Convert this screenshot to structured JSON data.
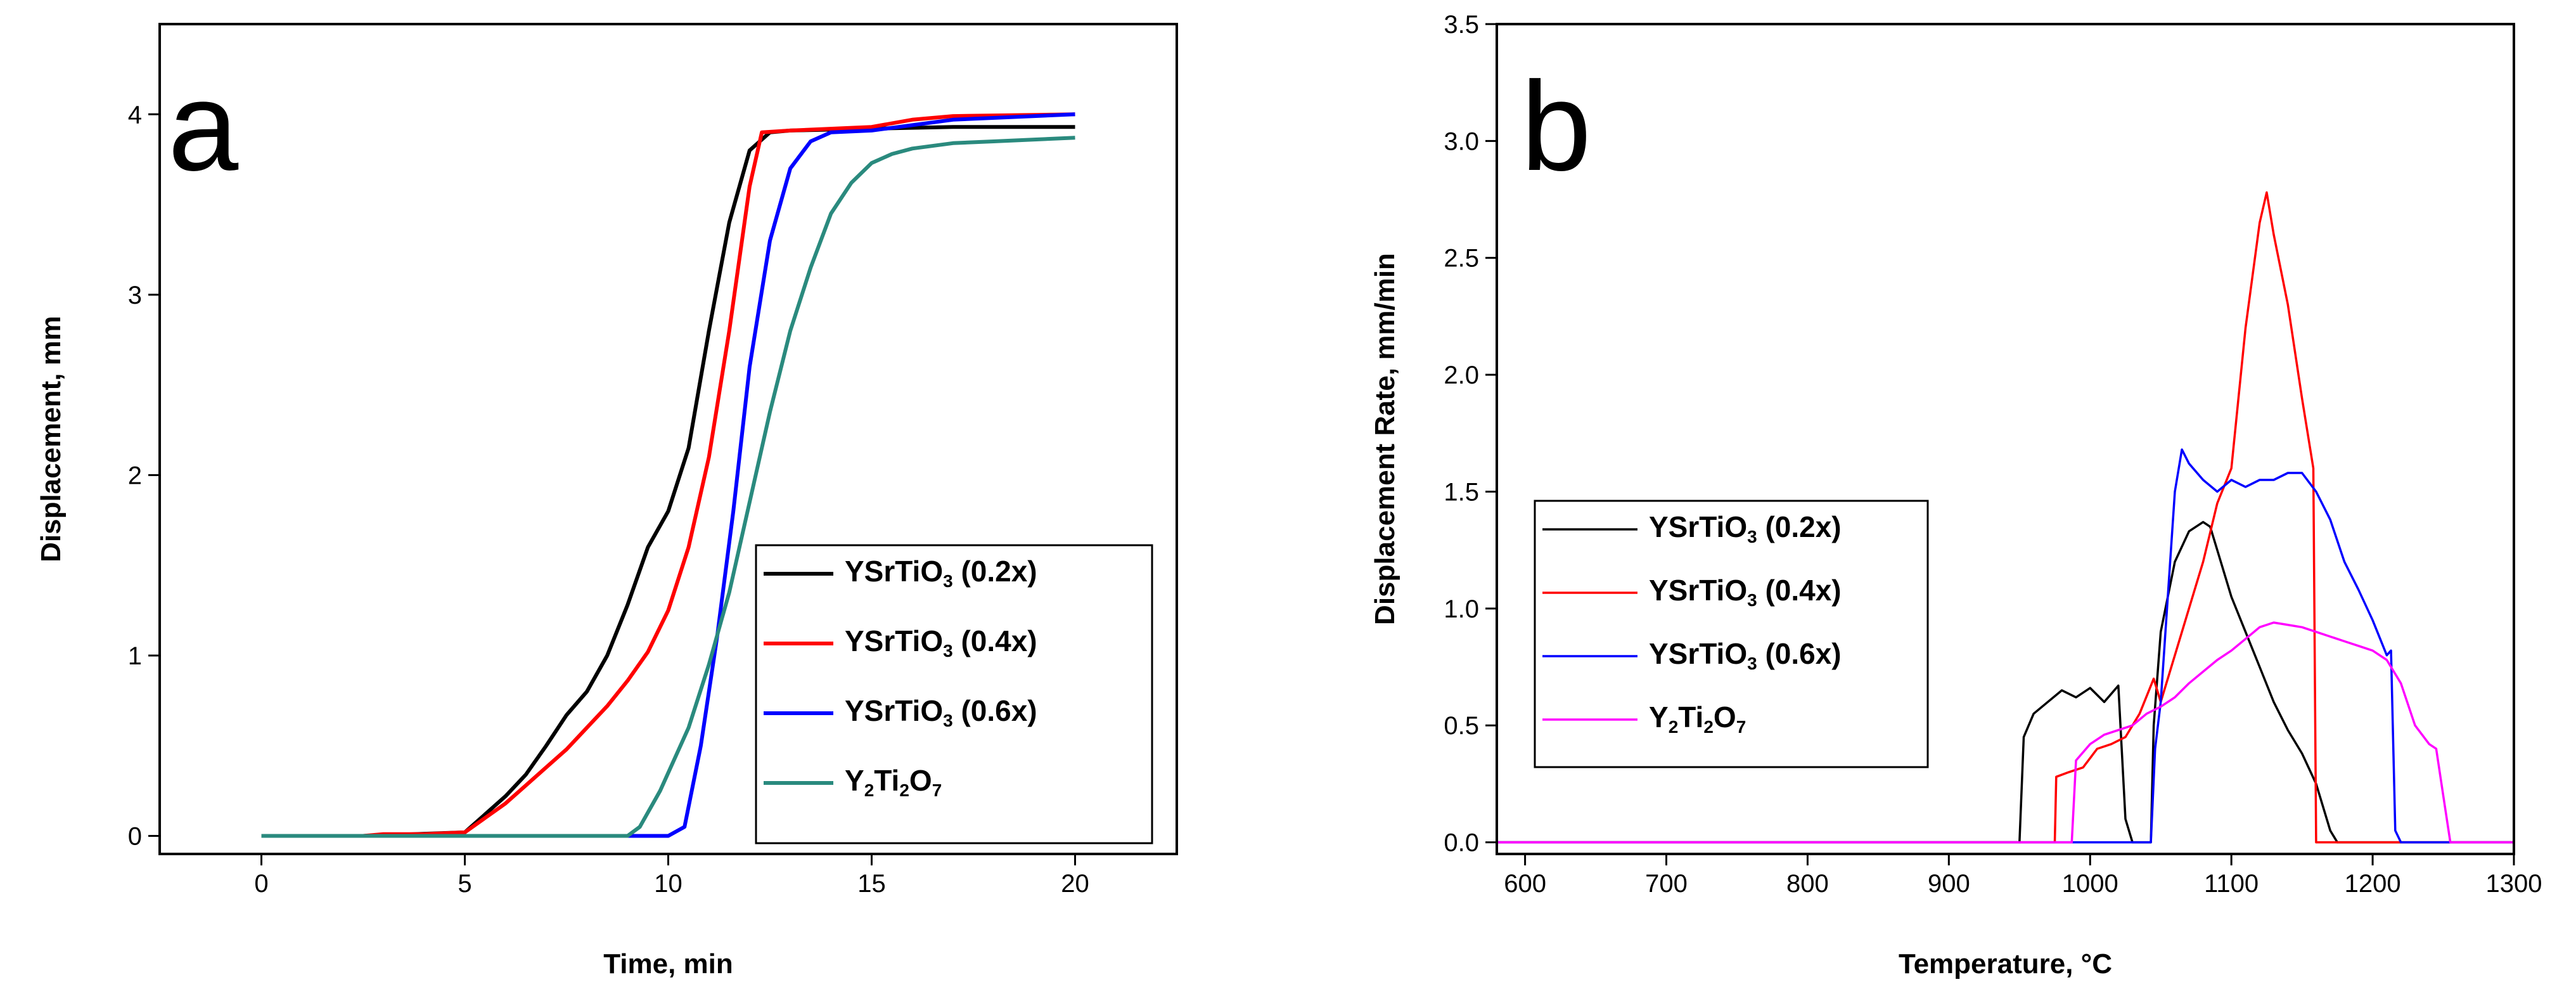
{
  "chart_data": [
    {
      "panel": "a",
      "type": "line",
      "xlabel": "Time, min",
      "ylabel": "Displacement, mm",
      "xlim": [
        -2.5,
        22.5
      ],
      "ylim": [
        -0.1,
        4.5
      ],
      "xticks": [
        0,
        5,
        10,
        15,
        20
      ],
      "xtick_labels": [
        "0",
        "5",
        "10",
        "15",
        "20"
      ],
      "yticks": [
        0,
        1,
        2,
        3,
        4
      ],
      "ytick_labels": [
        "0",
        "1",
        "2",
        "3",
        "4"
      ],
      "legend_position": "bottom-right",
      "series": [
        {
          "name_main": "YSrTiO",
          "name_sub": "3",
          "name_tail": " (0.2x)",
          "color": "#000000",
          "x": [
            0,
            2.5,
            5.0,
            5.5,
            6.0,
            6.5,
            7.0,
            7.5,
            8.0,
            8.5,
            9.0,
            9.5,
            10.0,
            10.5,
            11.0,
            11.5,
            12.0,
            12.5,
            13.0,
            15.0,
            17.0,
            20.0
          ],
          "y": [
            0,
            0,
            0.02,
            0.12,
            0.22,
            0.34,
            0.5,
            0.67,
            0.8,
            1.0,
            1.28,
            1.6,
            1.8,
            2.15,
            2.8,
            3.4,
            3.8,
            3.9,
            3.91,
            3.92,
            3.93,
            3.93
          ]
        },
        {
          "name_main": "YSrTiO",
          "name_sub": "3",
          "name_tail": " (0.4x)",
          "color": "#ff0000",
          "x": [
            0,
            2.5,
            3.0,
            4.0,
            5.0,
            5.5,
            6.0,
            6.5,
            7.0,
            7.5,
            8.0,
            8.5,
            9.0,
            9.5,
            10.0,
            10.5,
            11.0,
            11.5,
            12.0,
            12.3,
            13.0,
            15.0,
            16.0,
            17.0,
            20.0
          ],
          "y": [
            0,
            0,
            0.01,
            0.01,
            0.02,
            0.1,
            0.18,
            0.28,
            0.38,
            0.48,
            0.6,
            0.72,
            0.86,
            1.02,
            1.25,
            1.6,
            2.1,
            2.8,
            3.6,
            3.9,
            3.91,
            3.93,
            3.97,
            3.99,
            4.0
          ]
        },
        {
          "name_main": "YSrTiO",
          "name_sub": "3",
          "name_tail": " (0.6x)",
          "color": "#0000ff",
          "x": [
            0,
            10.0,
            10.4,
            10.8,
            11.2,
            11.6,
            12.0,
            12.5,
            13.0,
            13.5,
            14.0,
            15.0,
            17.0,
            20.0
          ],
          "y": [
            0,
            0,
            0.05,
            0.5,
            1.1,
            1.8,
            2.6,
            3.3,
            3.7,
            3.85,
            3.9,
            3.91,
            3.97,
            4.0
          ]
        },
        {
          "name_main": "Y",
          "name_sub": "2",
          "name_mid": "Ti",
          "name_sub2": "2",
          "name_mid2": "O",
          "name_sub3": "7",
          "name_tail": "",
          "color": "#2a8a7e",
          "x": [
            0,
            9.0,
            9.3,
            9.8,
            10.5,
            11.0,
            11.5,
            12.0,
            12.5,
            13.0,
            13.5,
            14.0,
            14.5,
            15.0,
            15.5,
            16.0,
            17.0,
            18.0,
            19.0,
            20.0
          ],
          "y": [
            0,
            0,
            0.05,
            0.25,
            0.6,
            0.95,
            1.35,
            1.85,
            2.35,
            2.8,
            3.15,
            3.45,
            3.62,
            3.73,
            3.78,
            3.81,
            3.84,
            3.85,
            3.86,
            3.87
          ]
        }
      ]
    },
    {
      "panel": "b",
      "type": "line",
      "xlabel": "Temperature, °C",
      "ylabel": "Displacement Rate, mm/min",
      "xlim": [
        580,
        1300
      ],
      "ylim": [
        -0.05,
        3.5
      ],
      "xticks": [
        600,
        700,
        800,
        900,
        1000,
        1100,
        1200,
        1300
      ],
      "xtick_labels": [
        "600",
        "700",
        "800",
        "900",
        "1000",
        "1100",
        "1200",
        "1300"
      ],
      "yticks": [
        0.0,
        0.5,
        1.0,
        1.5,
        2.0,
        2.5,
        3.0,
        3.5
      ],
      "ytick_labels": [
        "0.0",
        "0.5",
        "1.0",
        "1.5",
        "2.0",
        "2.5",
        "3.0",
        "3.5"
      ],
      "legend_position": "center-left",
      "series": [
        {
          "name_main": "YSrTiO",
          "name_sub": "3",
          "name_tail": " (0.2x)",
          "color": "#000000",
          "x": [
            580,
            950,
            953,
            960,
            970,
            980,
            990,
            1000,
            1010,
            1020,
            1025,
            1030,
            1043,
            1045,
            1050,
            1060,
            1070,
            1080,
            1085,
            1090,
            1100,
            1110,
            1120,
            1130,
            1140,
            1150,
            1160,
            1170,
            1175,
            1300
          ],
          "y": [
            0,
            0,
            0.45,
            0.55,
            0.6,
            0.65,
            0.62,
            0.66,
            0.6,
            0.67,
            0.1,
            0,
            0,
            0.5,
            0.9,
            1.2,
            1.33,
            1.37,
            1.35,
            1.25,
            1.05,
            0.9,
            0.75,
            0.6,
            0.48,
            0.38,
            0.25,
            0.05,
            0,
            0
          ]
        },
        {
          "name_main": "YSrTiO",
          "name_sub": "3",
          "name_tail": " (0.4x)",
          "color": "#ff0000",
          "x": [
            580,
            975,
            976,
            985,
            995,
            1005,
            1015,
            1025,
            1035,
            1045,
            1050,
            1060,
            1070,
            1080,
            1090,
            1100,
            1110,
            1120,
            1125,
            1130,
            1140,
            1150,
            1158,
            1160,
            1300
          ],
          "y": [
            0,
            0,
            0.28,
            0.3,
            0.32,
            0.4,
            0.42,
            0.45,
            0.55,
            0.7,
            0.6,
            0.8,
            1.0,
            1.2,
            1.45,
            1.6,
            2.2,
            2.65,
            2.78,
            2.6,
            2.3,
            1.9,
            1.6,
            0,
            0
          ]
        },
        {
          "name_main": "YSrTiO",
          "name_sub": "3",
          "name_tail": " (0.6x)",
          "color": "#0000ff",
          "x": [
            580,
            1043,
            1046,
            1050,
            1060,
            1065,
            1070,
            1080,
            1090,
            1100,
            1110,
            1120,
            1130,
            1140,
            1150,
            1160,
            1170,
            1180,
            1190,
            1200,
            1210,
            1213,
            1216,
            1220,
            1300
          ],
          "y": [
            0,
            0,
            0.4,
            0.6,
            1.5,
            1.68,
            1.62,
            1.55,
            1.5,
            1.55,
            1.52,
            1.55,
            1.55,
            1.58,
            1.58,
            1.5,
            1.38,
            1.2,
            1.08,
            0.95,
            0.8,
            0.82,
            0.05,
            0,
            0
          ]
        },
        {
          "name_main": "Y",
          "name_sub": "2",
          "name_mid": "Ti",
          "name_sub2": "2",
          "name_mid2": "O",
          "name_sub3": "7",
          "name_tail": "",
          "color": "#ff00ff",
          "x": [
            580,
            987,
            990,
            1000,
            1010,
            1020,
            1030,
            1040,
            1050,
            1060,
            1070,
            1080,
            1090,
            1100,
            1110,
            1120,
            1130,
            1140,
            1150,
            1160,
            1170,
            1180,
            1190,
            1200,
            1210,
            1220,
            1230,
            1240,
            1245,
            1250,
            1255,
            1300
          ],
          "y": [
            0,
            0,
            0.35,
            0.42,
            0.46,
            0.48,
            0.5,
            0.55,
            0.58,
            0.62,
            0.68,
            0.73,
            0.78,
            0.82,
            0.87,
            0.92,
            0.94,
            0.93,
            0.92,
            0.9,
            0.88,
            0.86,
            0.84,
            0.82,
            0.78,
            0.68,
            0.5,
            0.42,
            0.4,
            0.2,
            0,
            0
          ]
        }
      ]
    }
  ]
}
